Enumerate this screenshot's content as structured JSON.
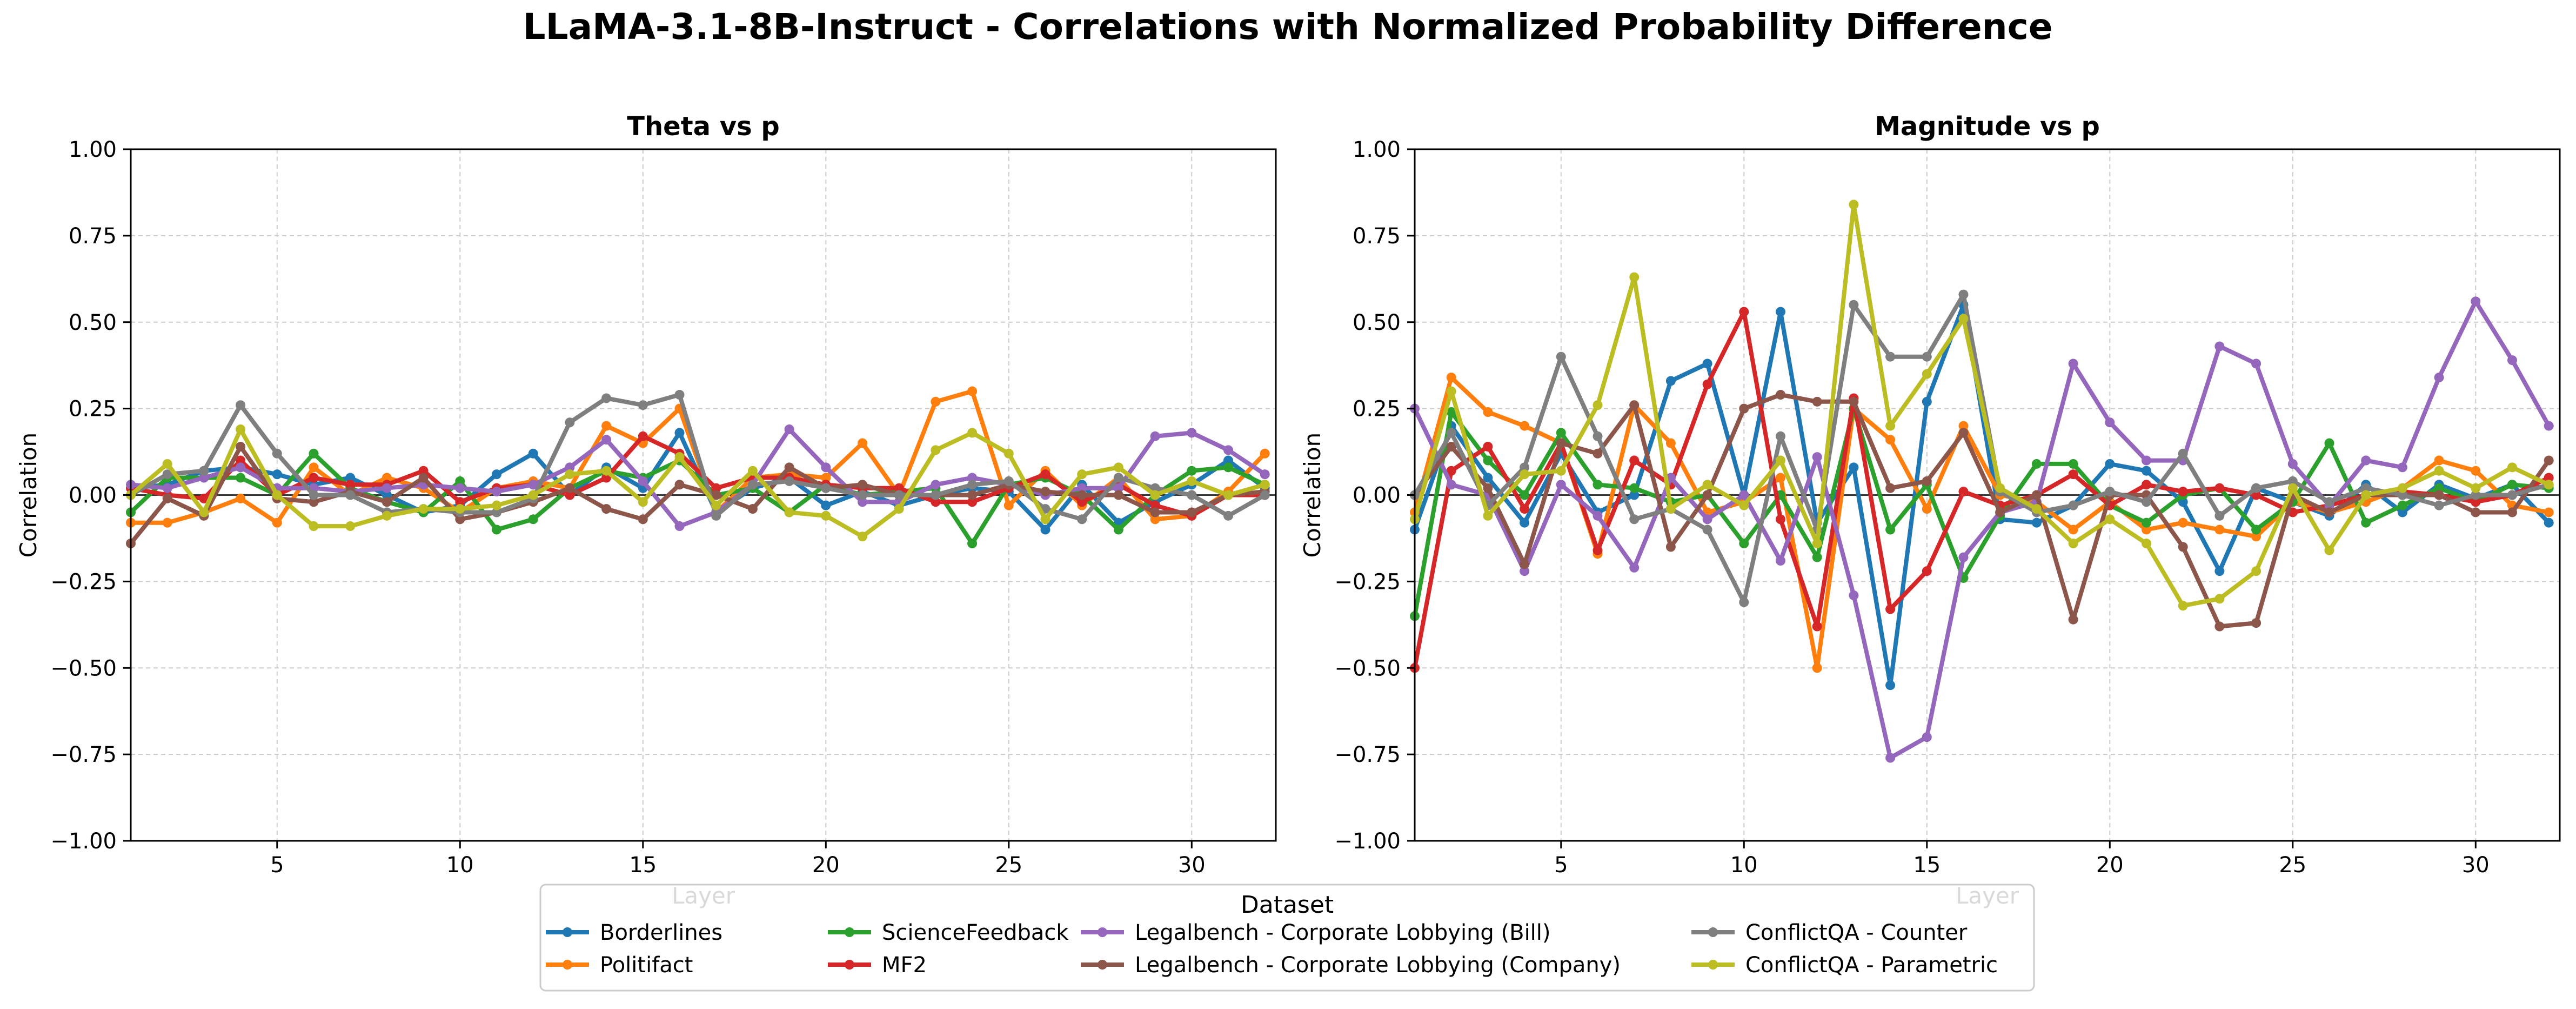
{
  "figure_title": "LLaMA-3.1-8B-Instruct - Correlations with Normalized Probability Difference",
  "legend": {
    "title": "Dataset",
    "placement": "bottom-center",
    "ncol": 4
  },
  "colors": {
    "Borderlines": "#1f77b4",
    "Politifact": "#ff7f0e",
    "ScienceFeedback": "#2ca02c",
    "MF2": "#d62728",
    "Legalbench - Corporate Lobbying (Bill)": "#9467bd",
    "Legalbench - Corporate Lobbying (Company)": "#8c564b",
    "ConflictQA - Counter": "#7f7f7f",
    "ConflictQA - Parametric": "#bcbd22"
  },
  "chart_data": [
    {
      "type": "line",
      "title": "Theta vs p",
      "xlabel": "Layer",
      "ylabel": "Correlation",
      "xlim": [
        1,
        32.3
      ],
      "ylim": [
        -1.0,
        1.0
      ],
      "xticks": [
        5,
        10,
        15,
        20,
        25,
        30
      ],
      "yticks": [
        -1.0,
        -0.75,
        -0.5,
        -0.25,
        0.0,
        0.25,
        0.5,
        0.75,
        1.0
      ],
      "ytick_labels": [
        "−1.00",
        "−0.75",
        "−0.50",
        "−0.25",
        "0.00",
        "0.25",
        "0.50",
        "0.75",
        "1.00"
      ],
      "grid": true,
      "x": [
        1,
        2,
        3,
        4,
        5,
        6,
        7,
        8,
        9,
        10,
        11,
        12,
        13,
        14,
        15,
        16,
        17,
        18,
        19,
        20,
        21,
        22,
        23,
        24,
        25,
        26,
        27,
        28,
        29,
        30,
        31,
        32
      ],
      "series": [
        {
          "name": "Borderlines",
          "values": [
            0.02,
            0.03,
            0.07,
            0.08,
            0.06,
            0.03,
            0.05,
            0.0,
            -0.05,
            -0.03,
            0.06,
            0.12,
            0.0,
            0.08,
            0.02,
            0.18,
            -0.05,
            0.02,
            0.05,
            -0.03,
            0.01,
            -0.03,
            0.0,
            0.02,
            0.01,
            -0.1,
            0.03,
            -0.08,
            -0.02,
            0.03,
            0.1,
            0.02
          ]
        },
        {
          "name": "Politifact",
          "values": [
            -0.08,
            -0.08,
            -0.05,
            -0.01,
            -0.08,
            0.08,
            0.0,
            0.05,
            0.02,
            -0.05,
            0.02,
            0.04,
            0.02,
            0.2,
            0.15,
            0.25,
            -0.05,
            0.05,
            0.06,
            0.05,
            0.15,
            0.0,
            0.27,
            0.3,
            -0.03,
            0.07,
            -0.03,
            0.05,
            -0.07,
            -0.06,
            0.01,
            0.12
          ]
        },
        {
          "name": "ScienceFeedback",
          "values": [
            -0.05,
            0.05,
            0.05,
            0.05,
            0.0,
            0.12,
            0.02,
            -0.02,
            -0.05,
            0.04,
            -0.1,
            -0.07,
            0.02,
            0.07,
            0.05,
            0.1,
            0.0,
            0.02,
            -0.05,
            0.03,
            0.0,
            0.01,
            0.02,
            -0.14,
            0.03,
            0.05,
            0.0,
            -0.1,
            0.0,
            0.07,
            0.08,
            0.03
          ]
        },
        {
          "name": "MF2",
          "values": [
            0.02,
            0.0,
            -0.01,
            0.1,
            0.0,
            0.05,
            0.03,
            0.03,
            0.07,
            -0.02,
            0.02,
            0.03,
            0.0,
            0.05,
            0.17,
            0.12,
            0.02,
            0.05,
            0.05,
            0.03,
            0.02,
            0.02,
            -0.02,
            -0.02,
            0.02,
            0.06,
            -0.02,
            0.03,
            -0.03,
            -0.06,
            0.0,
            0.0
          ]
        },
        {
          "name": "Legalbench - Corporate Lobbying (Bill)",
          "values": [
            0.03,
            0.02,
            0.05,
            0.08,
            0.02,
            0.02,
            0.01,
            0.02,
            0.03,
            0.02,
            0.01,
            0.03,
            0.08,
            0.16,
            0.04,
            -0.09,
            -0.05,
            0.03,
            0.19,
            0.08,
            -0.02,
            -0.02,
            0.03,
            0.05,
            0.03,
            0.0,
            0.02,
            0.02,
            0.17,
            0.18,
            0.13,
            0.06
          ]
        },
        {
          "name": "Legalbench - Corporate Lobbying (Company)",
          "values": [
            -0.14,
            -0.01,
            -0.06,
            0.14,
            -0.01,
            -0.02,
            0.01,
            -0.02,
            0.05,
            -0.07,
            -0.05,
            -0.02,
            0.02,
            -0.04,
            -0.07,
            0.03,
            0.0,
            -0.04,
            0.08,
            0.02,
            0.03,
            0.0,
            0.0,
            0.0,
            0.03,
            0.01,
            0.0,
            0.0,
            -0.05,
            -0.05,
            0.0,
            0.01
          ]
        },
        {
          "name": "ConflictQA - Counter",
          "values": [
            0.0,
            0.06,
            0.07,
            0.26,
            0.12,
            0.0,
            0.0,
            -0.05,
            -0.04,
            -0.05,
            -0.05,
            -0.01,
            0.21,
            0.28,
            0.26,
            0.29,
            -0.06,
            0.03,
            0.04,
            0.02,
            0.0,
            0.0,
            0.0,
            0.03,
            0.04,
            -0.04,
            -0.07,
            0.05,
            0.02,
            0.0,
            -0.06,
            0.0
          ]
        },
        {
          "name": "ConflictQA - Parametric",
          "values": [
            0.0,
            0.09,
            -0.05,
            0.19,
            0.0,
            -0.09,
            -0.09,
            -0.06,
            -0.04,
            -0.04,
            -0.03,
            0.0,
            0.06,
            0.07,
            -0.02,
            0.11,
            -0.03,
            0.07,
            -0.05,
            -0.06,
            -0.12,
            -0.04,
            0.13,
            0.18,
            0.12,
            -0.07,
            0.06,
            0.08,
            0.0,
            0.04,
            0.0,
            0.03
          ]
        }
      ]
    },
    {
      "type": "line",
      "title": "Magnitude vs p",
      "xlabel": "Layer",
      "ylabel": "Correlation",
      "xlim": [
        1,
        32.3
      ],
      "ylim": [
        -1.0,
        1.0
      ],
      "xticks": [
        5,
        10,
        15,
        20,
        25,
        30
      ],
      "yticks": [
        -1.0,
        -0.75,
        -0.5,
        -0.25,
        0.0,
        0.25,
        0.5,
        0.75,
        1.0
      ],
      "ytick_labels": [
        "−1.00",
        "−0.75",
        "−0.50",
        "−0.25",
        "0.00",
        "0.25",
        "0.50",
        "0.75",
        "1.00"
      ],
      "grid": true,
      "x": [
        1,
        2,
        3,
        4,
        5,
        6,
        7,
        8,
        9,
        10,
        11,
        12,
        13,
        14,
        15,
        16,
        17,
        18,
        19,
        20,
        21,
        22,
        23,
        24,
        25,
        26,
        27,
        28,
        29,
        30,
        31,
        32
      ],
      "series": [
        {
          "name": "Borderlines",
          "values": [
            -0.1,
            0.2,
            0.05,
            -0.08,
            0.12,
            -0.05,
            0.0,
            0.33,
            0.38,
            0.0,
            0.53,
            -0.08,
            0.08,
            -0.55,
            0.27,
            0.55,
            -0.07,
            -0.08,
            -0.03,
            0.09,
            0.07,
            -0.02,
            -0.22,
            0.02,
            -0.02,
            -0.06,
            0.03,
            -0.05,
            0.03,
            -0.01,
            0.03,
            -0.08
          ]
        },
        {
          "name": "Politifact",
          "values": [
            -0.05,
            0.34,
            0.24,
            0.2,
            0.15,
            -0.17,
            0.26,
            0.15,
            -0.05,
            -0.02,
            0.05,
            -0.5,
            0.25,
            0.16,
            -0.04,
            0.2,
            0.0,
            -0.02,
            -0.1,
            -0.02,
            -0.1,
            -0.08,
            -0.1,
            -0.12,
            -0.02,
            -0.05,
            -0.02,
            0.02,
            0.1,
            0.07,
            -0.03,
            -0.05
          ]
        },
        {
          "name": "ScienceFeedback",
          "values": [
            -0.35,
            0.24,
            0.1,
            0.0,
            0.18,
            0.03,
            0.02,
            -0.02,
            0.0,
            -0.14,
            0.0,
            -0.18,
            0.25,
            -0.1,
            0.03,
            -0.24,
            -0.06,
            0.09,
            0.09,
            -0.03,
            -0.08,
            0.0,
            0.02,
            -0.1,
            -0.02,
            0.15,
            -0.08,
            -0.03,
            0.02,
            -0.02,
            0.03,
            0.02
          ]
        },
        {
          "name": "MF2",
          "values": [
            -0.5,
            0.07,
            0.14,
            -0.04,
            0.15,
            -0.16,
            0.1,
            0.03,
            0.32,
            0.53,
            -0.07,
            -0.38,
            0.28,
            -0.33,
            -0.22,
            0.01,
            -0.03,
            0.0,
            0.06,
            -0.03,
            0.03,
            0.01,
            0.02,
            0.0,
            -0.05,
            -0.03,
            0.0,
            0.01,
            0.0,
            -0.02,
            0.0,
            0.05
          ]
        },
        {
          "name": "Legalbench - Corporate Lobbying (Bill)",
          "values": [
            0.25,
            0.03,
            0.0,
            -0.22,
            0.03,
            -0.06,
            -0.21,
            0.05,
            -0.07,
            0.0,
            -0.19,
            0.11,
            -0.29,
            -0.76,
            -0.7,
            -0.18,
            -0.05,
            -0.02,
            0.38,
            0.21,
            0.1,
            0.1,
            0.43,
            0.38,
            0.09,
            -0.03,
            0.1,
            0.08,
            0.34,
            0.56,
            0.39,
            0.2
          ]
        },
        {
          "name": "Legalbench - Corporate Lobbying (Company)",
          "values": [
            0.0,
            0.14,
            0.02,
            -0.2,
            0.15,
            0.12,
            0.26,
            -0.15,
            0.0,
            0.25,
            0.29,
            0.27,
            0.27,
            0.02,
            0.04,
            0.18,
            -0.05,
            0.0,
            -0.36,
            0.0,
            0.0,
            -0.15,
            -0.38,
            -0.37,
            0.0,
            -0.05,
            0.0,
            0.0,
            0.0,
            -0.05,
            -0.05,
            0.1
          ]
        },
        {
          "name": "ConflictQA - Counter",
          "values": [
            0.0,
            0.18,
            -0.03,
            0.08,
            0.4,
            0.17,
            -0.07,
            -0.04,
            -0.1,
            -0.31,
            0.17,
            -0.1,
            0.55,
            0.4,
            0.4,
            0.58,
            0.01,
            -0.05,
            -0.03,
            0.01,
            -0.02,
            0.12,
            -0.06,
            0.02,
            0.04,
            -0.02,
            0.02,
            0.0,
            -0.03,
            0.0,
            0.0,
            0.03
          ]
        },
        {
          "name": "ConflictQA - Parametric",
          "values": [
            -0.07,
            0.3,
            -0.06,
            0.06,
            0.07,
            0.26,
            0.63,
            -0.04,
            0.03,
            -0.03,
            0.1,
            -0.14,
            0.84,
            0.2,
            0.35,
            0.51,
            0.02,
            -0.04,
            -0.14,
            -0.07,
            -0.14,
            -0.32,
            -0.3,
            -0.22,
            0.02,
            -0.16,
            0.0,
            0.02,
            0.07,
            0.02,
            0.08,
            0.03
          ]
        }
      ]
    }
  ]
}
